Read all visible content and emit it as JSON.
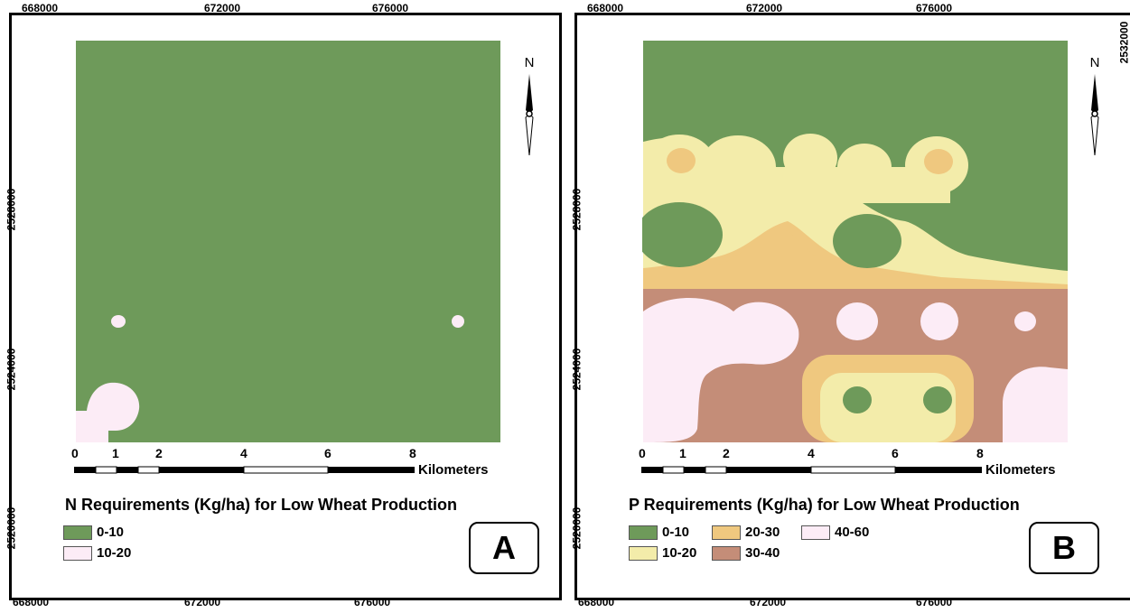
{
  "colors": {
    "green": "#6e9a5a",
    "light_yellow": "#f3ecaa",
    "orange": "#efc87f",
    "brown": "#c48d78",
    "pink": "#fcecf6"
  },
  "top_ticks": [
    "668000",
    "672000",
    "676000"
  ],
  "bottom_ticks": [
    "668000",
    "672000",
    "676000"
  ],
  "side_ticks": [
    "2532000",
    "2528000",
    "2524000",
    "2520000"
  ],
  "north_label": "N",
  "scale": {
    "labels": [
      "0",
      "1",
      "2",
      "4",
      "6",
      "8"
    ],
    "unit": "Kilometers"
  },
  "panels": [
    {
      "letter": "A",
      "title": "N Requirements (Kg/ha) for Low Wheat Production",
      "legend": [
        {
          "label": "0-10",
          "color": "#6e9a5a"
        },
        {
          "label": "10-20",
          "color": "#fcecf6"
        }
      ]
    },
    {
      "letter": "B",
      "title": "P Requirements (Kg/ha) for Low Wheat Production",
      "legend": [
        {
          "label": "0-10",
          "color": "#6e9a5a"
        },
        {
          "label": "20-30",
          "color": "#efc87f"
        },
        {
          "label": "40-60",
          "color": "#fcecf6"
        },
        {
          "label": "10-20",
          "color": "#f3ecaa"
        },
        {
          "label": "30-40",
          "color": "#c48d78"
        }
      ]
    }
  ]
}
